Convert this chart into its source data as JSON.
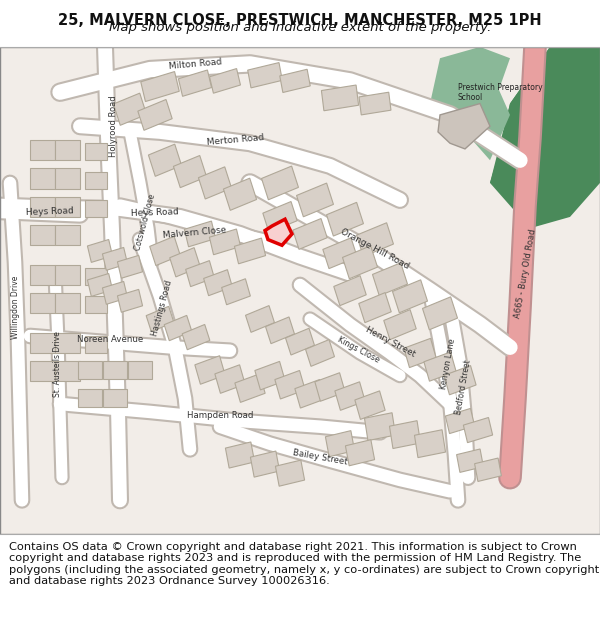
{
  "title_line1": "25, MALVERN CLOSE, PRESTWICH, MANCHESTER, M25 1PH",
  "title_line2": "Map shows position and indicative extent of the property.",
  "footer_text": "Contains OS data © Crown copyright and database right 2021. This information is subject to Crown copyright and database rights 2023 and is reproduced with the permission of HM Land Registry. The polygons (including the associated geometry, namely x, y co-ordinates) are subject to Crown copyright and database rights 2023 Ordnance Survey 100026316.",
  "bg_color": "#f2ede8",
  "road_color": "#ffffff",
  "road_outline_color": "#c8c0b8",
  "building_color": "#d8d0c8",
  "building_outline_color": "#b8b0a8",
  "green_color": "#4a8a5a",
  "green_light_color": "#8ab898",
  "pink_road_color": "#e8a0a0",
  "highlight_fill": "#f8d0d0",
  "highlight_stroke": "#e00000",
  "header_bg": "#ffffff",
  "footer_bg": "#ffffff",
  "title_fontsize": 10.5,
  "subtitle_fontsize": 9.5,
  "footer_fontsize": 8.2
}
